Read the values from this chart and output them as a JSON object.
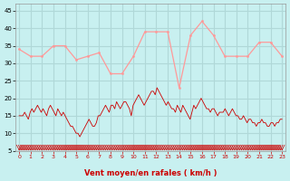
{
  "xlabel": "Vent moyen/en rafales ( km/h )",
  "bg_color": "#c8f0f0",
  "grid_color": "#b0d8d8",
  "rafales_color": "#ff9999",
  "vent_color": "#cc0000",
  "arrow_color": "#cc0000",
  "xlabel_color": "#cc0000",
  "tick_color": "#cc0000",
  "ylim": [
    5,
    47
  ],
  "yticks": [
    5,
    10,
    15,
    20,
    25,
    30,
    35,
    40,
    45
  ],
  "xticks": [
    0,
    1,
    2,
    3,
    4,
    5,
    6,
    7,
    8,
    9,
    10,
    11,
    12,
    13,
    14,
    15,
    16,
    17,
    18,
    19,
    20,
    21,
    22,
    23
  ],
  "rafales": [
    34,
    32,
    32,
    35,
    35,
    31,
    32,
    33,
    27,
    27,
    32,
    39,
    39,
    39,
    23,
    38,
    42,
    38,
    32,
    32,
    32,
    36,
    36,
    32
  ],
  "vent_moyen": [
    15,
    15,
    15,
    16,
    15,
    14,
    16,
    17,
    16,
    17,
    18,
    17,
    16,
    17,
    16,
    15,
    17,
    18,
    17,
    16,
    15,
    17,
    16,
    15,
    16,
    15,
    14,
    13,
    12,
    12,
    11,
    10,
    10,
    9,
    10,
    11,
    12,
    13,
    14,
    13,
    12,
    12,
    13,
    15,
    15,
    16,
    17,
    18,
    17,
    16,
    18,
    18,
    17,
    19,
    18,
    17,
    18,
    19,
    19,
    18,
    17,
    15,
    18,
    19,
    20,
    21,
    20,
    19,
    18,
    19,
    20,
    21,
    22,
    22,
    21,
    23,
    22,
    21,
    20,
    19,
    18,
    19,
    18,
    17,
    17,
    16,
    18,
    17,
    16,
    18,
    17,
    16,
    15,
    14,
    16,
    18,
    17,
    18,
    19,
    20,
    19,
    18,
    17,
    17,
    16,
    17,
    17,
    16,
    15,
    16,
    16,
    16,
    17,
    16,
    15,
    16,
    17,
    16,
    15,
    15,
    14,
    14,
    15,
    14,
    13,
    14,
    14,
    13,
    13,
    12,
    13,
    13,
    14,
    13,
    13,
    12,
    12,
    13,
    13,
    12,
    13,
    13,
    14,
    14
  ]
}
